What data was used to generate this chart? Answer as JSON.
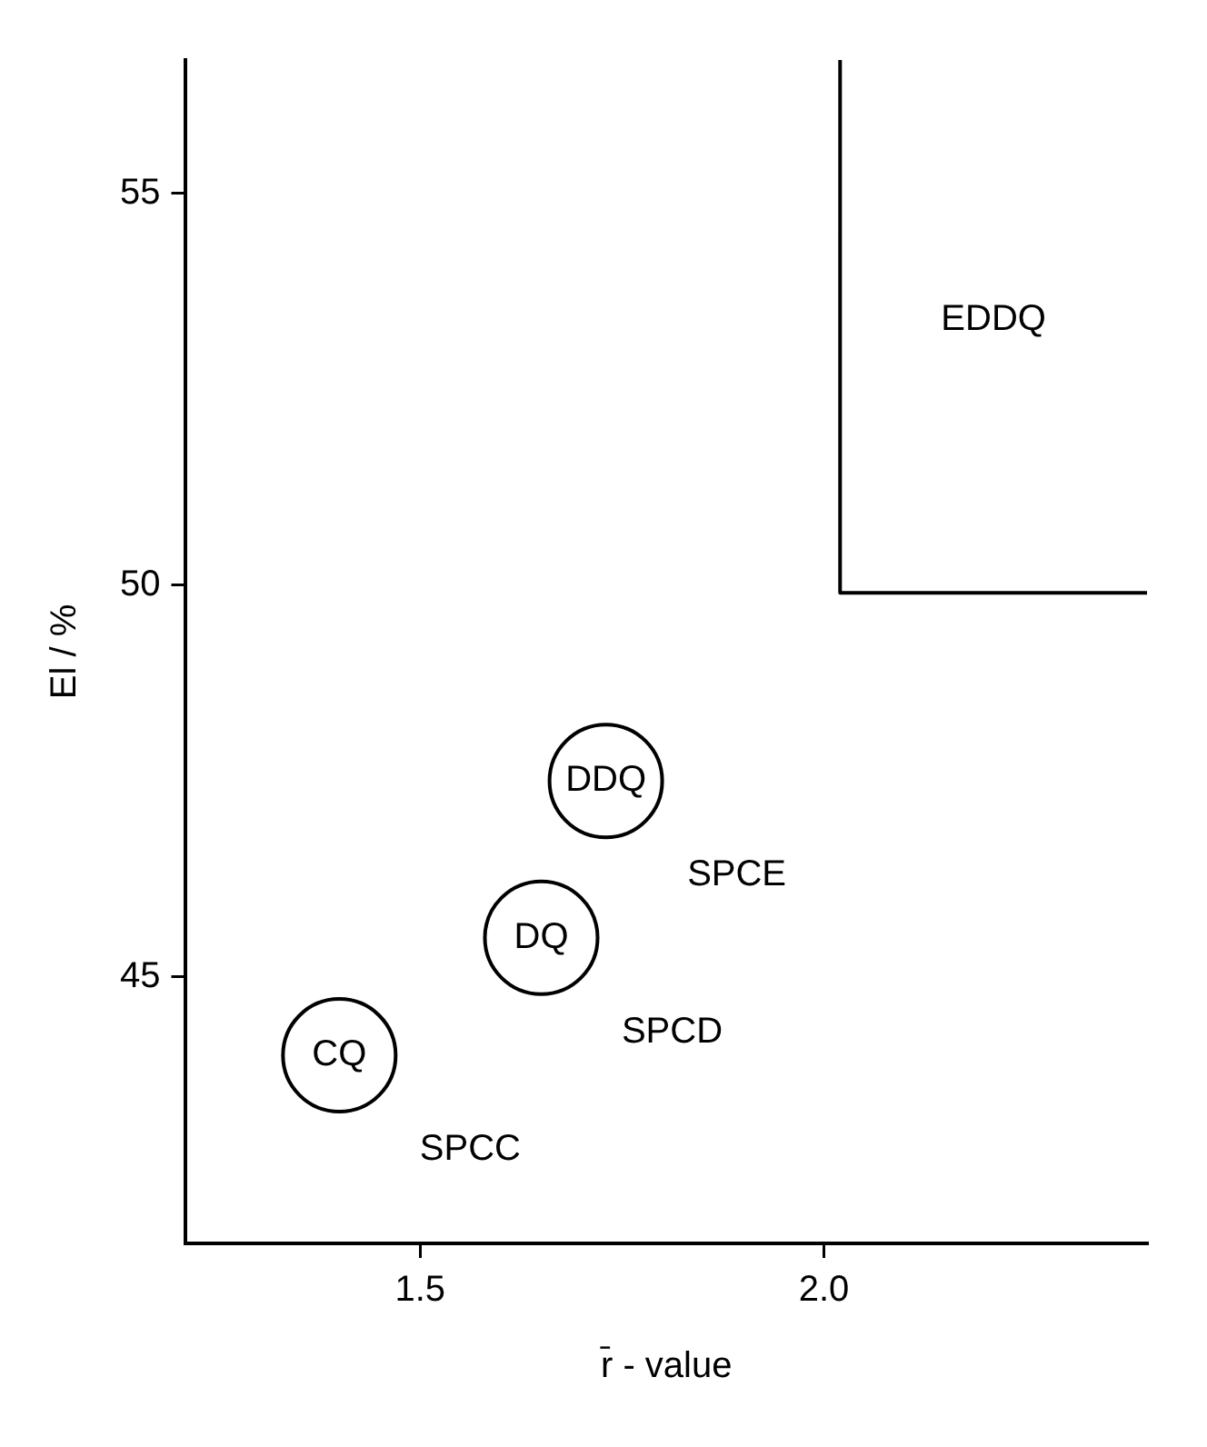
{
  "chart_data": {
    "type": "scatter",
    "xlabel": "r̄ - value",
    "ylabel": "El / %",
    "xlim": [
      1.21,
      2.4
    ],
    "ylim": [
      41.6,
      56.7
    ],
    "xticks": [
      1.5,
      {
        "value": 2,
        "label": "2.0"
      }
    ],
    "yticks": [
      45,
      50,
      55
    ],
    "grid": false,
    "legend": false,
    "series": [
      {
        "color": "#000000",
        "marker": "circle",
        "x": [
          1.4,
          1.65,
          1.73
        ],
        "values": [
          44,
          45.5,
          47.5
        ],
        "value_labels": [
          "CQ",
          "DQ",
          "DDQ"
        ]
      },
      {
        "type": "line",
        "name": "EDDQ",
        "color": "#000000",
        "marker": "none",
        "x": [
          2.02,
          2.02,
          2.4
        ],
        "values": [
          56.7,
          49.9,
          49.9
        ]
      }
    ],
    "annotations": [
      "SPCC",
      "SPCD",
      "SPCE"
    ]
  }
}
